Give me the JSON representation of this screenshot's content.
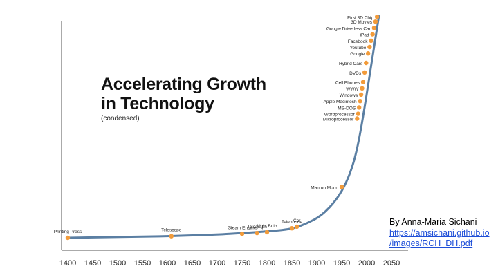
{
  "chart_data": {
    "type": "line",
    "title_lines": [
      "Accelerating Growth",
      "in Technology"
    ],
    "subtitle": "(condensed)",
    "x_ticks": [
      "1400",
      "1450",
      "1500",
      "1550",
      "1600",
      "1650",
      "1700",
      "1750",
      "1800",
      "1850",
      "1900",
      "1950",
      "2000",
      "2050"
    ],
    "xlim": [
      1400,
      2050
    ],
    "grid": false,
    "line_color": "#5b7fa3",
    "marker_color": "#f29b3a",
    "curve": [
      {
        "x": 1400,
        "y": 0
      },
      {
        "x": 1500,
        "y": 0.5
      },
      {
        "x": 1600,
        "y": 1
      },
      {
        "x": 1700,
        "y": 2
      },
      {
        "x": 1750,
        "y": 3
      },
      {
        "x": 1800,
        "y": 4
      },
      {
        "x": 1850,
        "y": 5.5
      },
      {
        "x": 1880,
        "y": 9
      },
      {
        "x": 1910,
        "y": 14
      },
      {
        "x": 1940,
        "y": 24
      },
      {
        "x": 1960,
        "y": 35
      },
      {
        "x": 1975,
        "y": 48
      },
      {
        "x": 1985,
        "y": 62
      },
      {
        "x": 1995,
        "y": 80
      },
      {
        "x": 2005,
        "y": 100
      },
      {
        "x": 2015,
        "y": 120
      },
      {
        "x": 2025,
        "y": 140
      }
    ],
    "milestones": [
      {
        "label": "Printing Press",
        "x": 1400,
        "y": 0
      },
      {
        "label": "Telescope",
        "x": 1608,
        "y": 1
      },
      {
        "label": "Steam Engine",
        "x": 1750,
        "y": 2.5
      },
      {
        "label": "Telegraph",
        "x": 1780,
        "y": 3
      },
      {
        "label": "Light Bulb",
        "x": 1800,
        "y": 3.5
      },
      {
        "label": "Telephone",
        "x": 1850,
        "y": 6
      },
      {
        "label": "Car",
        "x": 1860,
        "y": 7
      },
      {
        "label": "Man on Moon",
        "x": 1950,
        "y": 32
      },
      {
        "label": "Microprocessor",
        "x": 1981,
        "y": 75
      },
      {
        "label": "Wordprocessor",
        "x": 1983,
        "y": 78
      },
      {
        "label": "MS-DOS",
        "x": 1985,
        "y": 82
      },
      {
        "label": "Apple Macintosh",
        "x": 1987,
        "y": 86
      },
      {
        "label": "Windows",
        "x": 1989,
        "y": 90
      },
      {
        "label": "WWW",
        "x": 1991,
        "y": 94
      },
      {
        "label": "Cell Phones",
        "x": 1993,
        "y": 98
      },
      {
        "label": "DVDs",
        "x": 1996,
        "y": 104
      },
      {
        "label": "Hybrid Cars",
        "x": 1999,
        "y": 110
      },
      {
        "label": "Google",
        "x": 2003,
        "y": 116
      },
      {
        "label": "Youtube",
        "x": 2006,
        "y": 120
      },
      {
        "label": "Facebook",
        "x": 2009,
        "y": 124
      },
      {
        "label": "iPad",
        "x": 2012,
        "y": 128
      },
      {
        "label": "Google Driverless Car",
        "x": 2015,
        "y": 132
      },
      {
        "label": "3D Movies",
        "x": 2018,
        "y": 136
      },
      {
        "label": "First 3D Chip",
        "x": 2021,
        "y": 139
      }
    ]
  },
  "credit": {
    "author": "By Anna-Maria Sichani",
    "link_line1": "https://amsichani.github.io",
    "link_line2": "/images/RCH_DH.pdf"
  }
}
